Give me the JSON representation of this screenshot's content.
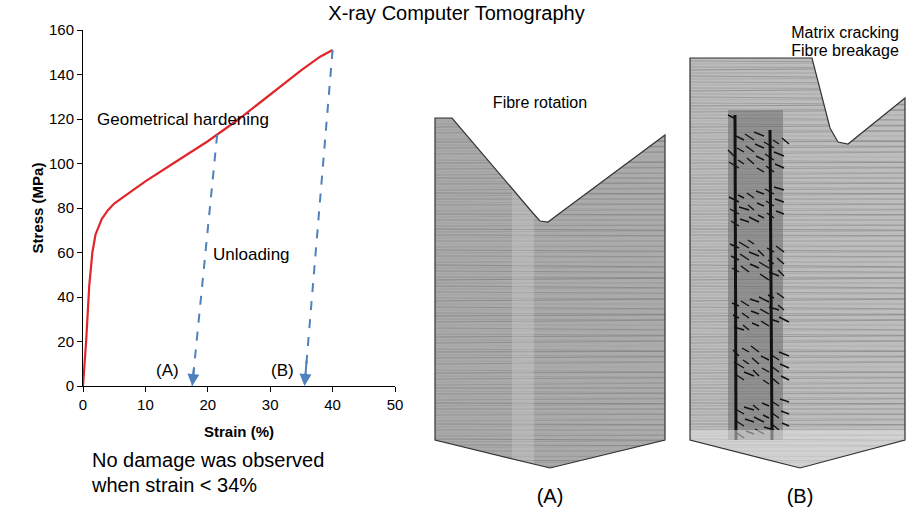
{
  "title": "X-ray Computer Tomography",
  "chart_data": {
    "type": "line",
    "xlabel": "Strain (%)",
    "ylabel": "Stress (MPa)",
    "xlim": [
      0,
      50
    ],
    "ylim": [
      0,
      160
    ],
    "xticks": [
      0,
      10,
      20,
      30,
      40,
      50
    ],
    "yticks": [
      0,
      20,
      40,
      60,
      80,
      100,
      120,
      140,
      160
    ],
    "grid": false,
    "series": [
      {
        "x": [
          0,
          0.5,
          1,
          1.5,
          2,
          3,
          4,
          5,
          7,
          10,
          15,
          20,
          25,
          30,
          35,
          38,
          40
        ],
        "values": [
          0,
          20,
          45,
          60,
          68,
          75,
          79,
          82,
          86,
          92,
          101,
          110,
          120,
          131,
          142,
          148,
          151
        ],
        "color": "#e0262b",
        "line_style": "solid"
      },
      {
        "x": [
          21.5,
          17.5
        ],
        "values": [
          113,
          0
        ],
        "color": "#4f81bd",
        "line_style": "dashed",
        "marker": "arrow"
      },
      {
        "x": [
          40,
          35.5
        ],
        "values": [
          151,
          0
        ],
        "color": "#4f81bd",
        "line_style": "dashed",
        "marker": "arrow"
      }
    ],
    "annotations": [
      {
        "text": "Geometrical hardening",
        "x": 16,
        "y": 120
      },
      {
        "text": "Unloading",
        "x": 27,
        "y": 59
      },
      {
        "text": "(A)",
        "x": 13.5,
        "y": 7
      },
      {
        "text": "(B)",
        "x": 32,
        "y": 7
      }
    ]
  },
  "note": "No damage was observed when strain < 34%",
  "panels": [
    {
      "label": "(A)",
      "caption": [
        "Fibre rotation"
      ]
    },
    {
      "label": "(B)",
      "caption": [
        "Matrix cracking",
        "Fibre breakage"
      ]
    }
  ]
}
